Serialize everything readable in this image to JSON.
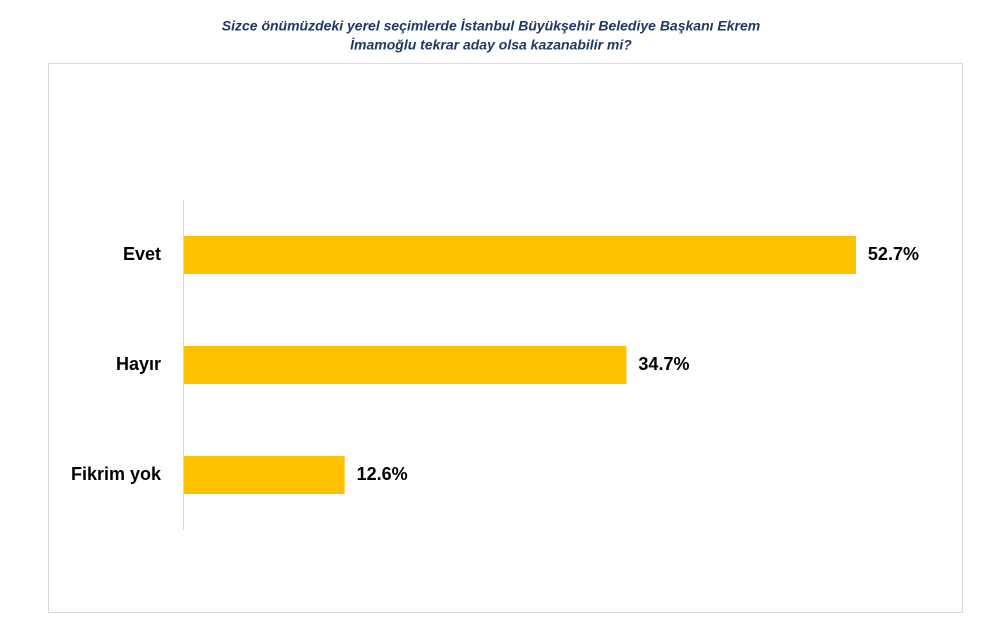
{
  "chart_data": {
    "type": "bar",
    "orientation": "horizontal",
    "title": [
      "Sizce önümüzdeki yerel seçimlerde İstanbul Büyükşehir Belediye Başkanı Ekrem",
      "İmamoğlu tekrar aday olsa  kazanabilir mi?"
    ],
    "categories": [
      "Evet",
      "Hayır",
      "Fikrim yok"
    ],
    "values": [
      52.7,
      34.7,
      12.6
    ],
    "value_labels": [
      "52.7%",
      "34.7%",
      "12.6%"
    ],
    "color": "#ffc000"
  }
}
